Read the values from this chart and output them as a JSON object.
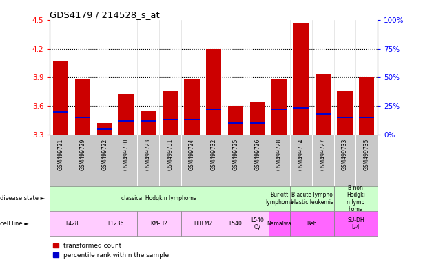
{
  "title": "GDS4179 / 214528_s_at",
  "samples": [
    "GSM499721",
    "GSM499729",
    "GSM499722",
    "GSM499730",
    "GSM499723",
    "GSM499731",
    "GSM499724",
    "GSM499732",
    "GSM499725",
    "GSM499726",
    "GSM499728",
    "GSM499734",
    "GSM499727",
    "GSM499733",
    "GSM499735"
  ],
  "transformed_count": [
    4.07,
    3.88,
    3.42,
    3.72,
    3.54,
    3.76,
    3.88,
    4.2,
    3.6,
    3.64,
    3.88,
    4.47,
    3.93,
    3.75,
    3.9
  ],
  "percentile_rank": [
    20,
    15,
    5,
    12,
    12,
    13,
    13,
    22,
    10,
    10,
    22,
    23,
    18,
    15,
    15
  ],
  "y_min": 3.3,
  "y_max": 4.5,
  "y_ticks": [
    3.3,
    3.6,
    3.9,
    4.2,
    4.5
  ],
  "y_right_ticks": [
    0,
    25,
    50,
    75,
    100
  ],
  "dotted_lines": [
    3.6,
    3.9,
    4.2
  ],
  "bar_color": "#cc0000",
  "blue_color": "#0000cc",
  "label_bg": "#c8c8c8",
  "disease_green": "#ccffcc",
  "cell_light": "#ffccff",
  "cell_dark": "#ff66ff",
  "disease_states": [
    {
      "label": "classical Hodgkin lymphoma",
      "start": 0,
      "end": 10
    },
    {
      "label": "Burkitt\nlymphoma",
      "start": 10,
      "end": 11
    },
    {
      "label": "B acute lympho\nblastic leukemia",
      "start": 11,
      "end": 13
    },
    {
      "label": "B non\nHodgki\nn lymp\nhoma",
      "start": 13,
      "end": 15
    }
  ],
  "cell_lines": [
    {
      "label": "L428",
      "start": 0,
      "end": 2,
      "dark": false
    },
    {
      "label": "L1236",
      "start": 2,
      "end": 4,
      "dark": false
    },
    {
      "label": "KM-H2",
      "start": 4,
      "end": 6,
      "dark": false
    },
    {
      "label": "HDLM2",
      "start": 6,
      "end": 8,
      "dark": false
    },
    {
      "label": "L540",
      "start": 8,
      "end": 9,
      "dark": false
    },
    {
      "label": "L540\nCy",
      "start": 9,
      "end": 10,
      "dark": false
    },
    {
      "label": "Namalwa",
      "start": 10,
      "end": 11,
      "dark": true
    },
    {
      "label": "Reh",
      "start": 11,
      "end": 13,
      "dark": true
    },
    {
      "label": "SU-DH\nL-4",
      "start": 13,
      "end": 15,
      "dark": true
    }
  ]
}
